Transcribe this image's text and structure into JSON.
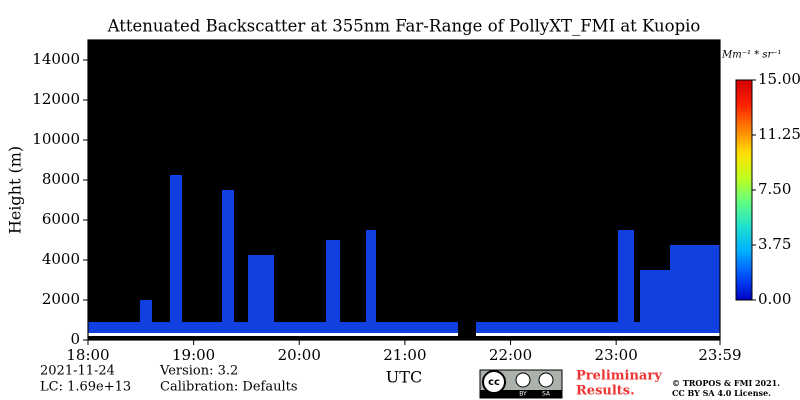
{
  "chart_data": {
    "type": "heatmap",
    "title": "Attenuated Backscatter at 355nm Far-Range of PollyXT_FMI at Kuopio",
    "y_label": "Height (m)",
    "x_label": "UTC",
    "xlim": [
      18,
      23.983
    ],
    "xticks": [
      {
        "value": 18,
        "label": "18:00"
      },
      {
        "value": 19,
        "label": "19:00"
      },
      {
        "value": 20,
        "label": "20:00"
      },
      {
        "value": 21,
        "label": "21:00"
      },
      {
        "value": 22,
        "label": "22:00"
      },
      {
        "value": 23,
        "label": "23:00"
      },
      {
        "value": 23.983,
        "label": "23:59"
      }
    ],
    "ylim": [
      0,
      15000
    ],
    "yticks": [
      0,
      2000,
      4000,
      6000,
      8000,
      10000,
      12000,
      14000
    ],
    "background": "#000000",
    "colorbar": {
      "unit": "Mm⁻¹ * sr⁻¹",
      "lim": [
        0,
        15
      ],
      "ticks": [
        {
          "value": 0,
          "label": "0.00"
        },
        {
          "value": 3.75,
          "label": "3.75"
        },
        {
          "value": 7.5,
          "label": "7.50"
        },
        {
          "value": 11.25,
          "label": "11.25"
        },
        {
          "value": 15,
          "label": "15.00"
        }
      ],
      "colors": [
        "#0000c0",
        "#0050ff",
        "#00b0ff",
        "#20e0d0",
        "#60ff80",
        "#c0ff20",
        "#ffe000",
        "#ff8000",
        "#ff2000",
        "#d00000"
      ]
    },
    "footer": {
      "date": "2021-11-24",
      "lc": "LC: 1.69e+13",
      "version": "Version: 3.2",
      "calibration": "Calibration: Defaults",
      "badge": [
        "cc",
        "BY",
        "SA"
      ],
      "status": [
        "Preliminary",
        "Results."
      ],
      "copyright": [
        "© TROPOS & FMI 2021.",
        "CC BY SA 4.0 License."
      ]
    }
  }
}
